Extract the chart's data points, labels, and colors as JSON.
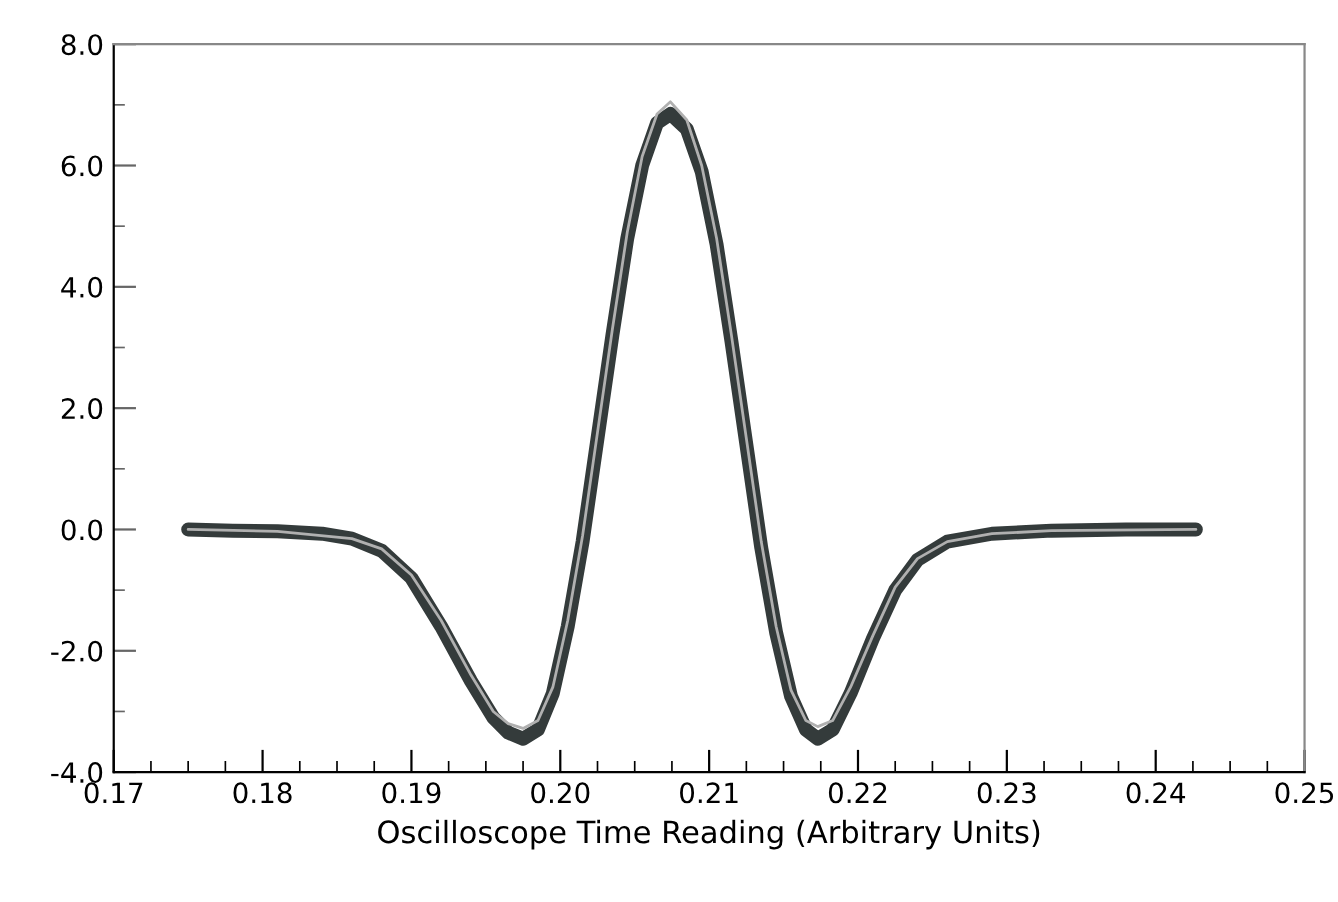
{
  "chart_data": {
    "type": "line",
    "xlabel": "Oscilloscope Time Reading (Arbitrary Units)",
    "xlim": [
      0.17,
      0.25
    ],
    "xticks": [
      0.17,
      {
        "value": 0.1725,
        "label": null
      },
      {
        "value": 0.175,
        "label": null
      },
      {
        "value": 0.1775,
        "label": null
      },
      0.18,
      {
        "value": 0.1825,
        "label": null
      },
      {
        "value": 0.185,
        "label": null
      },
      {
        "value": 0.1875,
        "label": null
      },
      0.19,
      {
        "value": 0.1925,
        "label": null
      },
      {
        "value": 0.195,
        "label": null
      },
      {
        "value": 0.1975,
        "label": null
      },
      {
        "value": 0.2,
        "label": "0.20"
      },
      {
        "value": 0.2025,
        "label": null
      },
      {
        "value": 0.205,
        "label": null
      },
      {
        "value": 0.2075,
        "label": null
      },
      0.21,
      {
        "value": 0.2125,
        "label": null
      },
      {
        "value": 0.215,
        "label": null
      },
      {
        "value": 0.2175,
        "label": null
      },
      0.22,
      {
        "value": 0.2225,
        "label": null
      },
      {
        "value": 0.225,
        "label": null
      },
      {
        "value": 0.2275,
        "label": null
      },
      0.23,
      {
        "value": 0.2325,
        "label": null
      },
      {
        "value": 0.235,
        "label": null
      },
      {
        "value": 0.2375,
        "label": null
      },
      0.24,
      {
        "value": 0.2425,
        "label": null
      },
      {
        "value": 0.245,
        "label": null
      },
      {
        "value": 0.2475,
        "label": null
      },
      0.25
    ],
    "ylim": [
      -4.0,
      8.0
    ],
    "yticks": [
      {
        "value": -4,
        "label": "-4.0"
      },
      {
        "value": -3,
        "label": null
      },
      {
        "value": -2,
        "label": "-2.0"
      },
      {
        "value": -1,
        "label": null
      },
      {
        "value": 0,
        "label": "0.0"
      },
      {
        "value": 1,
        "label": null
      },
      {
        "value": 2,
        "label": "2.0"
      },
      {
        "value": 3,
        "label": null
      },
      {
        "value": 4,
        "label": "4.0"
      },
      {
        "value": 5,
        "label": null
      },
      {
        "value": 6,
        "label": "6.0"
      },
      {
        "value": 7,
        "label": null
      },
      {
        "value": 8,
        "label": "8.0"
      }
    ],
    "grid": false,
    "legend": false,
    "marker": "none",
    "line_style": "solid",
    "series": [
      {
        "color": "#343b3b",
        "x": [
          0.175,
          0.178,
          0.181,
          0.184,
          0.186,
          0.188,
          0.19,
          0.192,
          0.194,
          0.1955,
          0.1965,
          0.1975,
          0.1985,
          0.1995,
          0.2005,
          0.2015,
          0.2025,
          0.2035,
          0.2045,
          0.2055,
          0.2065,
          0.2074,
          0.2085,
          0.2095,
          0.2105,
          0.2115,
          0.2125,
          0.2135,
          0.2145,
          0.2155,
          0.2165,
          0.2173,
          0.2183,
          0.2195,
          0.221,
          0.2225,
          0.224,
          0.226,
          0.229,
          0.233,
          0.238,
          0.2427
        ],
        "values": [
          0.0,
          -0.02,
          -0.03,
          -0.07,
          -0.15,
          -0.35,
          -0.8,
          -1.6,
          -2.5,
          -3.1,
          -3.35,
          -3.45,
          -3.3,
          -2.7,
          -1.6,
          -0.2,
          1.5,
          3.2,
          4.8,
          6.0,
          6.7,
          6.85,
          6.6,
          5.9,
          4.7,
          3.1,
          1.4,
          -0.3,
          -1.7,
          -2.75,
          -3.3,
          -3.45,
          -3.3,
          -2.7,
          -1.8,
          -1.0,
          -0.5,
          -0.2,
          -0.07,
          -0.02,
          0.0,
          0.0
        ]
      },
      {
        "color": "#b0b0b0",
        "x": [
          0.175,
          0.181,
          0.186,
          0.188,
          0.19,
          0.192,
          0.194,
          0.1955,
          0.1965,
          0.1975,
          0.1985,
          0.1995,
          0.2005,
          0.2015,
          0.2025,
          0.2035,
          0.2045,
          0.2055,
          0.2065,
          0.2074,
          0.2085,
          0.2095,
          0.2105,
          0.2115,
          0.2125,
          0.2135,
          0.2145,
          0.2155,
          0.2165,
          0.2173,
          0.2183,
          0.2195,
          0.221,
          0.2225,
          0.224,
          0.226,
          0.229,
          0.233,
          0.2427
        ],
        "values": [
          0.0,
          -0.03,
          -0.15,
          -0.32,
          -0.75,
          -1.5,
          -2.4,
          -3.0,
          -3.2,
          -3.28,
          -3.15,
          -2.6,
          -1.5,
          -0.1,
          1.6,
          3.3,
          4.9,
          6.15,
          6.85,
          7.05,
          6.75,
          6.0,
          4.8,
          3.2,
          1.5,
          -0.2,
          -1.6,
          -2.65,
          -3.15,
          -3.25,
          -3.15,
          -2.6,
          -1.75,
          -0.95,
          -0.48,
          -0.2,
          -0.07,
          -0.02,
          0.0
        ]
      }
    ]
  }
}
